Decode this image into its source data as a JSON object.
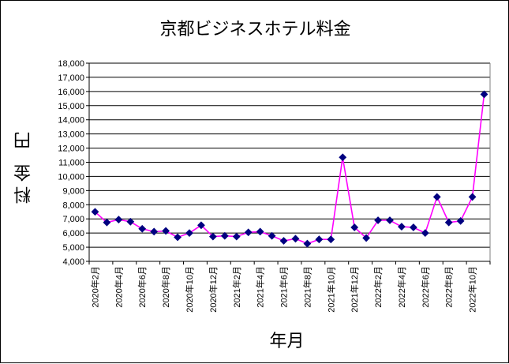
{
  "chart_data": {
    "type": "line",
    "title": "京都ビジネスホテル料金",
    "xlabel": "年月",
    "ylabel": "料金 円",
    "ylim": [
      4000,
      18000
    ],
    "y_ticks": [
      "4,000",
      "5,000",
      "6,000",
      "7,000",
      "8,000",
      "9,000",
      "10,000",
      "11,000",
      "12,000",
      "13,000",
      "14,000",
      "15,000",
      "16,000",
      "17,000",
      "18,000"
    ],
    "x_tick_labels": [
      "2020年2月",
      "2020年4月",
      "2020年6月",
      "2020年8月",
      "2020年10月",
      "2020年12月",
      "2021年2月",
      "2021年4月",
      "2021年6月",
      "2021年8月",
      "2021年10月",
      "2021年12月",
      "2022年2月",
      "2022年4月",
      "2022年6月",
      "2022年8月",
      "2022年10月"
    ],
    "grid": true,
    "line_color": "#ff00ff",
    "marker_color": "#000080",
    "series": [
      {
        "x": [
          "2020-02",
          "2020-03",
          "2020-04",
          "2020-05",
          "2020-06",
          "2020-07",
          "2020-08",
          "2020-09",
          "2020-10",
          "2020-11",
          "2020-12",
          "2021-01",
          "2021-02",
          "2021-03",
          "2021-04",
          "2021-05",
          "2021-06",
          "2021-07",
          "2021-08",
          "2021-09",
          "2021-10",
          "2021-11",
          "2021-12",
          "2022-01",
          "2022-02",
          "2022-03",
          "2022-04",
          "2022-05",
          "2022-06",
          "2022-07",
          "2022-08",
          "2022-09",
          "2022-10",
          "2022-11"
        ],
        "values": [
          7500,
          6750,
          6950,
          6800,
          6300,
          6100,
          6150,
          5700,
          6000,
          6550,
          5750,
          5800,
          5750,
          6050,
          6100,
          5800,
          5450,
          5600,
          5250,
          5550,
          5550,
          11350,
          6400,
          5650,
          6900,
          6900,
          6450,
          6400,
          6000,
          8550,
          6750,
          6850,
          8550,
          15800
        ]
      }
    ]
  }
}
